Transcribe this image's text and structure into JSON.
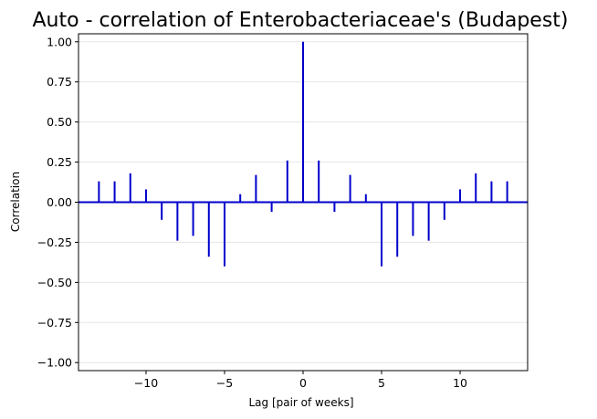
{
  "chart_data": {
    "type": "bar",
    "title": "Auto - correlation of Enterobacteriaceae's (Budapest)",
    "xlabel": "Lag [pair of weeks]",
    "ylabel": "Correlation",
    "xlim": [
      -14.3,
      14.3
    ],
    "ylim": [
      -1.05,
      1.05
    ],
    "x_ticks": [
      -10,
      -5,
      0,
      5,
      10
    ],
    "x_tick_labels": [
      "−10",
      "−5",
      "0",
      "5",
      "10"
    ],
    "y_ticks": [
      1.0,
      0.75,
      0.5,
      0.25,
      0.0,
      -0.25,
      -0.5,
      -0.75,
      -1.0
    ],
    "y_tick_labels": [
      "1.00",
      "0.75",
      "0.50",
      "0.25",
      "0.00",
      "−0.25",
      "−0.50",
      "−0.75",
      "−1.00"
    ],
    "grid": "horizontal",
    "series": [
      {
        "x": [
          -13,
          -12,
          -11,
          -10,
          -9,
          -8,
          -7,
          -6,
          -5,
          -4,
          -3,
          -2,
          -1,
          0,
          1,
          2,
          3,
          4,
          5,
          6,
          7,
          8,
          9,
          10,
          11,
          12,
          13
        ],
        "values": [
          0.13,
          0.13,
          0.18,
          0.08,
          -0.11,
          -0.24,
          -0.21,
          -0.34,
          -0.4,
          0.05,
          0.17,
          -0.06,
          0.26,
          1.0,
          0.26,
          -0.06,
          0.17,
          0.05,
          -0.4,
          -0.34,
          -0.21,
          -0.24,
          -0.11,
          0.08,
          0.18,
          0.13,
          0.13
        ]
      }
    ],
    "colors": {
      "bars": "#0000cc",
      "zero_line": "#0000cc",
      "grid": "#e6e6e6",
      "axes": "#000000"
    }
  }
}
